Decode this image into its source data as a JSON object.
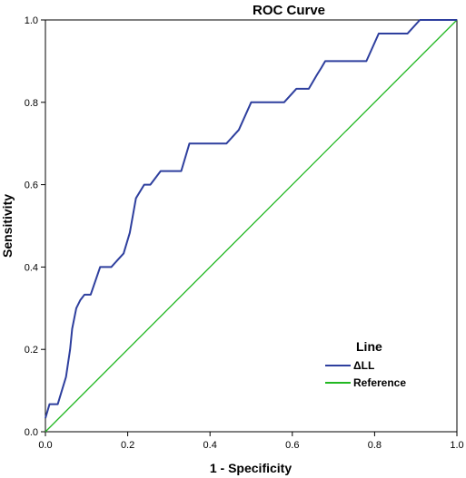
{
  "chart_data": {
    "type": "line",
    "title": "ROC Curve",
    "xlabel": "1 - Specificity",
    "ylabel": "Sensitivity",
    "xlim": [
      0.0,
      1.0
    ],
    "ylim": [
      0.0,
      1.0
    ],
    "x_ticks": [
      "0.0",
      "0.2",
      "0.4",
      "0.6",
      "0.8",
      "1.0"
    ],
    "y_ticks": [
      "0.0",
      "0.2",
      "0.4",
      "0.6",
      "0.8",
      "1.0"
    ],
    "grid": false,
    "legend": {
      "title": "Line",
      "placement": "bottom-right"
    },
    "series": [
      {
        "name": "ΔLL",
        "color": "#2e3f9e",
        "points": [
          [
            0.0,
            0.033
          ],
          [
            0.01,
            0.067
          ],
          [
            0.03,
            0.067
          ],
          [
            0.04,
            0.1
          ],
          [
            0.05,
            0.133
          ],
          [
            0.06,
            0.2
          ],
          [
            0.065,
            0.25
          ],
          [
            0.075,
            0.3
          ],
          [
            0.085,
            0.32
          ],
          [
            0.095,
            0.333
          ],
          [
            0.11,
            0.333
          ],
          [
            0.133,
            0.4
          ],
          [
            0.16,
            0.4
          ],
          [
            0.19,
            0.433
          ],
          [
            0.205,
            0.483
          ],
          [
            0.22,
            0.567
          ],
          [
            0.24,
            0.6
          ],
          [
            0.255,
            0.6
          ],
          [
            0.28,
            0.633
          ],
          [
            0.33,
            0.633
          ],
          [
            0.35,
            0.7
          ],
          [
            0.44,
            0.7
          ],
          [
            0.47,
            0.733
          ],
          [
            0.5,
            0.8
          ],
          [
            0.58,
            0.8
          ],
          [
            0.61,
            0.833
          ],
          [
            0.64,
            0.833
          ],
          [
            0.66,
            0.867
          ],
          [
            0.67,
            0.883
          ],
          [
            0.68,
            0.9
          ],
          [
            0.78,
            0.9
          ],
          [
            0.81,
            0.967
          ],
          [
            0.88,
            0.967
          ],
          [
            0.91,
            1.0
          ],
          [
            1.0,
            1.0
          ]
        ]
      },
      {
        "name": "Reference",
        "color": "#22b822",
        "points": [
          [
            0.0,
            0.0
          ],
          [
            1.0,
            1.0
          ]
        ]
      }
    ]
  }
}
